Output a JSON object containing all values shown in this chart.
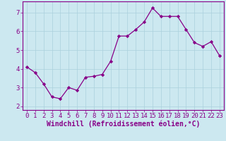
{
  "x": [
    0,
    1,
    2,
    3,
    4,
    5,
    6,
    7,
    8,
    9,
    10,
    11,
    12,
    13,
    14,
    15,
    16,
    17,
    18,
    19,
    20,
    21,
    22,
    23
  ],
  "y": [
    4.1,
    3.8,
    3.2,
    2.5,
    2.4,
    3.0,
    2.85,
    3.55,
    3.6,
    3.7,
    4.4,
    5.75,
    5.75,
    6.1,
    6.5,
    7.25,
    6.8,
    6.8,
    6.8,
    6.1,
    5.4,
    5.2,
    5.45,
    4.7
  ],
  "line_color": "#880088",
  "marker": "D",
  "marker_size": 2.2,
  "xlabel": "Windchill (Refroidissement éolien,°C)",
  "xlim": [
    -0.5,
    23.5
  ],
  "ylim": [
    1.8,
    7.6
  ],
  "yticks": [
    2,
    3,
    4,
    5,
    6,
    7
  ],
  "xticks": [
    0,
    1,
    2,
    3,
    4,
    5,
    6,
    7,
    8,
    9,
    10,
    11,
    12,
    13,
    14,
    15,
    16,
    17,
    18,
    19,
    20,
    21,
    22,
    23
  ],
  "bg_color": "#cce8f0",
  "grid_color": "#aad0dd",
  "font_color": "#880088",
  "tick_font_size": 6.5,
  "xlabel_font_size": 7.0,
  "spine_color": "#880088"
}
